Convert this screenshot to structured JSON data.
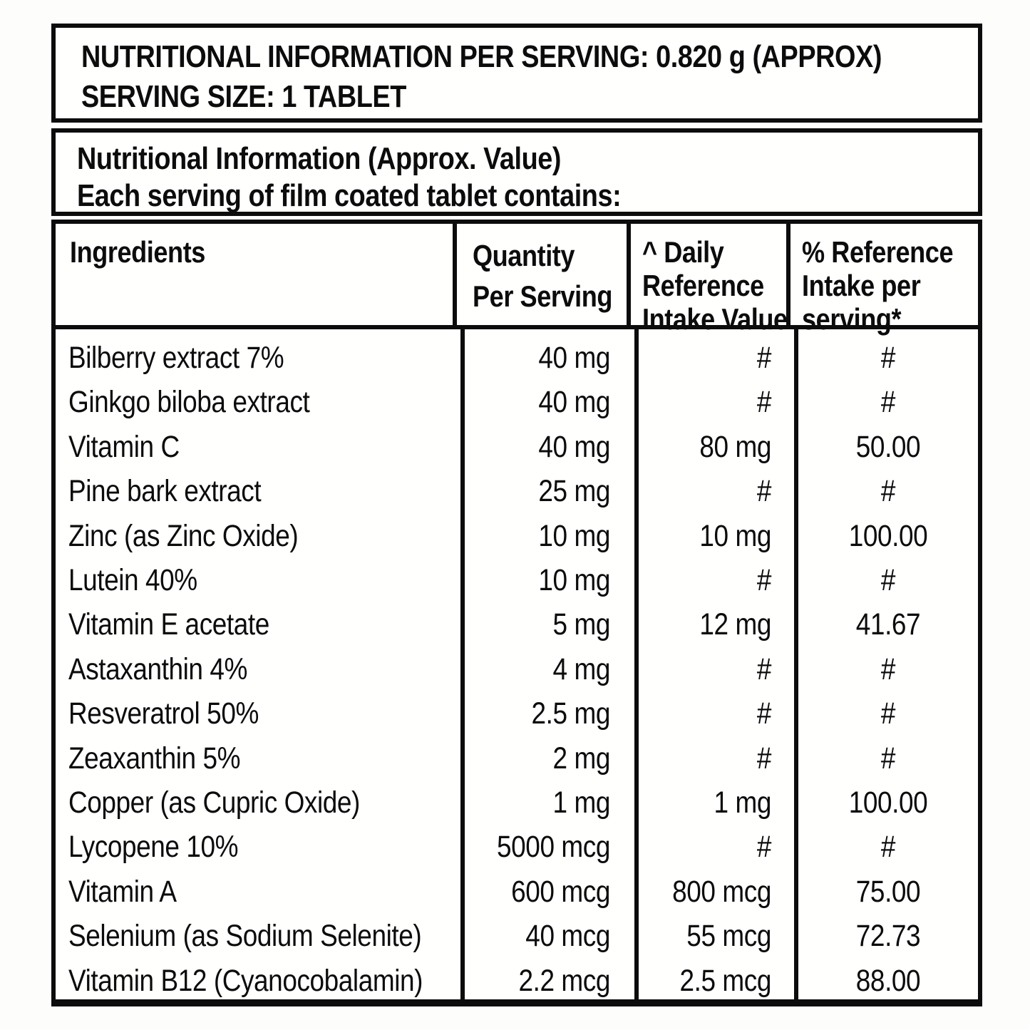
{
  "colors": {
    "ink": "#0c0c0c",
    "paper": "#fffffe"
  },
  "header_box": {
    "line1": "NUTRITIONAL INFORMATION PER SERVING: 0.820 g (APPROX)",
    "line2": "SERVING SIZE: 1 TABLET"
  },
  "subheader_box": {
    "line1": "Nutritional Information (Approx. Value)",
    "line2": "Each serving of film coated tablet contains:"
  },
  "table": {
    "columns": [
      {
        "label": "Ingredients",
        "lines": [
          "Ingredients"
        ]
      },
      {
        "label": "Quantity Per Serving",
        "lines": [
          "Quantity",
          "Per Serving"
        ]
      },
      {
        "label": "^ Daily Reference Intake Value",
        "lines": [
          "^ Daily",
          "Reference",
          "Intake Value"
        ]
      },
      {
        "label": "% Reference Intake per serving*",
        "lines": [
          "% Reference",
          "Intake per",
          "serving*"
        ]
      }
    ],
    "rows": [
      {
        "ingredient": "Bilberry extract 7%",
        "quantity": "40 mg",
        "dri": "#",
        "pct": "#"
      },
      {
        "ingredient": "Ginkgo biloba extract",
        "quantity": "40 mg",
        "dri": "#",
        "pct": "#"
      },
      {
        "ingredient": "Vitamin C",
        "quantity": "40 mg",
        "dri": "80 mg",
        "pct": "50.00"
      },
      {
        "ingredient": "Pine bark extract",
        "quantity": "25 mg",
        "dri": "#",
        "pct": "#"
      },
      {
        "ingredient": "Zinc (as Zinc Oxide)",
        "quantity": "10 mg",
        "dri": "10 mg",
        "pct": "100.00"
      },
      {
        "ingredient": "Lutein 40%",
        "quantity": "10 mg",
        "dri": "#",
        "pct": "#"
      },
      {
        "ingredient": "Vitamin E acetate",
        "quantity": "5 mg",
        "dri": "12 mg",
        "pct": "41.67"
      },
      {
        "ingredient": "Astaxanthin 4%",
        "quantity": "4 mg",
        "dri": "#",
        "pct": "#"
      },
      {
        "ingredient": "Resveratrol 50%",
        "quantity": "2.5 mg",
        "dri": "#",
        "pct": "#"
      },
      {
        "ingredient": "Zeaxanthin 5%",
        "quantity": "2 mg",
        "dri": "#",
        "pct": "#"
      },
      {
        "ingredient": "Copper (as Cupric Oxide)",
        "quantity": "1 mg",
        "dri": "1 mg",
        "pct": "100.00"
      },
      {
        "ingredient": "Lycopene 10%",
        "quantity": "5000 mcg",
        "dri": "#",
        "pct": "#"
      },
      {
        "ingredient": "Vitamin A",
        "quantity": "600 mcg",
        "dri": "800 mcg",
        "pct": "75.00"
      },
      {
        "ingredient": "Selenium (as Sodium Selenite)",
        "quantity": "40 mcg",
        "dri": "55 mcg",
        "pct": "72.73"
      },
      {
        "ingredient": "Vitamin B12 (Cyanocobalamin)",
        "quantity": "2.2 mcg",
        "dri": "2.5 mcg",
        "pct": "88.00"
      }
    ]
  }
}
